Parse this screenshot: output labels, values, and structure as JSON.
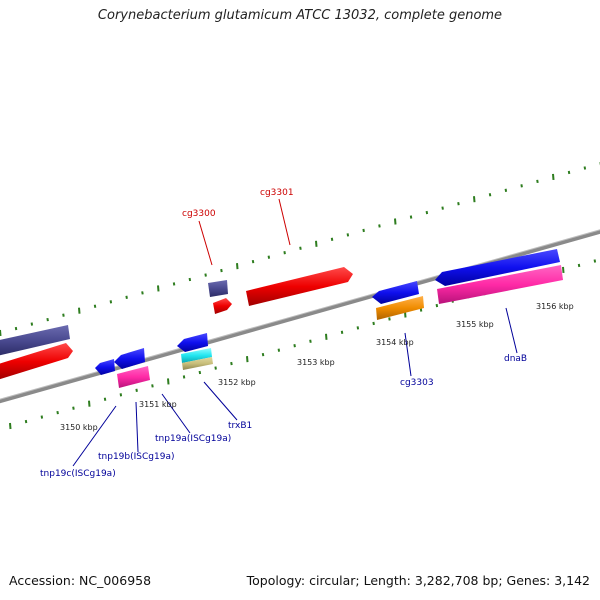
{
  "title": "Corynebacterium glutamicum ATCC 13032, complete genome",
  "footer": {
    "accession": "Accession: NC_006958",
    "summary": "Topology: circular; Length: 3,282,708 bp; Genes: 3,142"
  },
  "colors": {
    "background": "#ffffff",
    "backbone": "#8a8a8a",
    "tick": "#2e7d1f",
    "label_red": "#cc0000",
    "label_blue": "#000099"
  },
  "tick_labels": [
    "3150 kbp",
    "3151 kbp",
    "3152 kbp",
    "3153 kbp",
    "3154 kbp",
    "3155 kbp",
    "3156 kbp"
  ],
  "gene_labels": {
    "cg3300": "cg3300",
    "cg3301": "cg3301",
    "cg3303": "cg3303",
    "dnaB": "dnaB",
    "trxB1": "trxB1",
    "tnp19a": "tnp19a(ISCg19a)",
    "tnp19b": "tnp19b(ISCg19a)",
    "tnp19c": "tnp19c(ISCg19a)"
  }
}
